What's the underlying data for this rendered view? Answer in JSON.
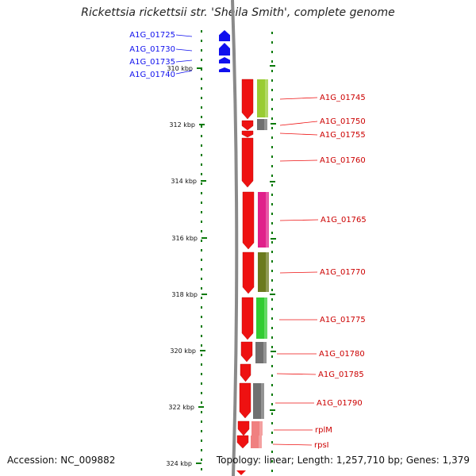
{
  "title": "Rickettsia rickettsii str. 'Sheila Smith', complete genome",
  "footer": {
    "accession": "Accession: NC_009882",
    "summary": "Topology: linear; Length: 1,257,710 bp; Genes: 1,379"
  },
  "scale_labels": [
    "310 kbp",
    "312 kbp",
    "314 kbp",
    "316 kbp",
    "318 kbp",
    "320 kbp",
    "322 kbp",
    "324 kbp"
  ],
  "colors": {
    "reverse_strand": "#1010ee",
    "forward_strand": "#ee1111",
    "ruler": "#0a7a0a",
    "backbone": "#8a8a8a"
  },
  "genes_reverse": [
    {
      "label": "A1G_01725"
    },
    {
      "label": "A1G_01730"
    },
    {
      "label": "A1G_01735"
    },
    {
      "label": "A1G_01740"
    }
  ],
  "genes_forward": [
    {
      "label": "A1G_01745",
      "color": "#99cc33"
    },
    {
      "label": "A1G_01750",
      "color": "#707070"
    },
    {
      "label": "A1G_01755",
      "color": ""
    },
    {
      "label": "A1G_01760",
      "color": ""
    },
    {
      "label": "A1G_01765",
      "color": "#e0208a"
    },
    {
      "label": "A1G_01770",
      "color": "#6b7a1e"
    },
    {
      "label": "A1G_01775",
      "color": "#33cc33"
    },
    {
      "label": "A1G_01780",
      "color": "#707070"
    },
    {
      "label": "A1G_01785",
      "color": ""
    },
    {
      "label": "A1G_01790",
      "color": "#707070"
    },
    {
      "label": "rplM",
      "color": "#f08080"
    },
    {
      "label": "rpsI",
      "color": "#f08080"
    }
  ]
}
